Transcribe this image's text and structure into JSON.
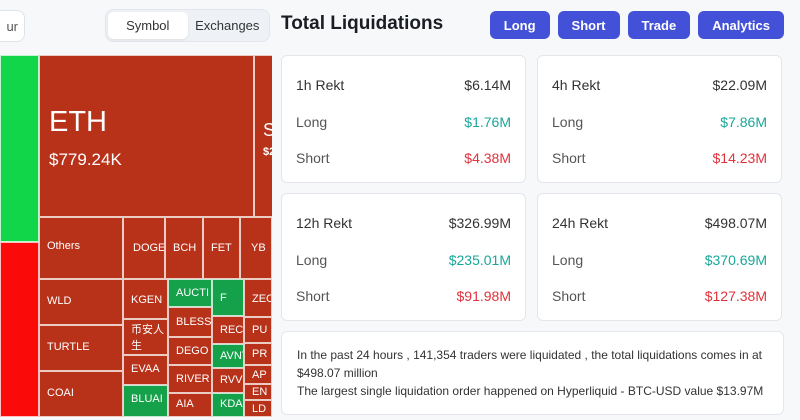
{
  "timeframe_partial": "ur",
  "segment": {
    "options": [
      "Symbol",
      "Exchanges"
    ],
    "active": "Symbol"
  },
  "title": "Total Liquidations",
  "buttons": [
    "Long",
    "Short",
    "Trade",
    "Analytics"
  ],
  "colors": {
    "accent": "#4351d8",
    "long": "#1aa79a",
    "short": "#e0323b",
    "treemap_red": "#b8321a",
    "treemap_green": "#14a14a"
  },
  "cards": [
    {
      "label": "1h Rekt",
      "total": "$6.14M",
      "long_label": "Long",
      "long": "$1.76M",
      "short_label": "Short",
      "short": "$4.38M"
    },
    {
      "label": "4h Rekt",
      "total": "$22.09M",
      "long_label": "Long",
      "long": "$7.86M",
      "short_label": "Short",
      "short": "$14.23M"
    },
    {
      "label": "12h Rekt",
      "total": "$326.99M",
      "long_label": "Long",
      "long": "$235.01M",
      "short_label": "Short",
      "short": "$91.98M"
    },
    {
      "label": "24h Rekt",
      "total": "$498.07M",
      "long_label": "Long",
      "long": "$370.69M",
      "short_label": "Short",
      "short": "$127.38M"
    }
  ],
  "info": {
    "line1": "In the past 24 hours , 141,354 traders were liquidated , the total liquidations comes in at $498.07 million",
    "line2": "The largest single liquidation order happened on Hyperliquid - BTC-USD value $13.97M"
  },
  "treemap": {
    "eth": {
      "symbol": "ETH",
      "value": "$779.24K"
    },
    "partial_symbol": "S",
    "partial_value": "$2",
    "labels": {
      "others": "Others",
      "doge": "DOGE",
      "bch": "BCH",
      "fet": "FET",
      "yb": "YB",
      "wld": "WLD",
      "kgen": "KGEN",
      "auction": "AUCTI",
      "f": "F",
      "zec": "ZEC",
      "bianren": "币安人生",
      "bless": "BLESS",
      "reca": "RECA",
      "pu": "PU",
      "turtle": "TURTLE",
      "dego": "DEGO",
      "avnt": "AVNT",
      "pr": "PR",
      "evaa": "EVAA",
      "river": "RIVER",
      "rvv": "RVV",
      "ap": "AP",
      "coai": "COAI",
      "bluai": "BLUAI",
      "aia": "AIA",
      "kda": "KDA",
      "en": "EN",
      "ld": "LD"
    }
  }
}
